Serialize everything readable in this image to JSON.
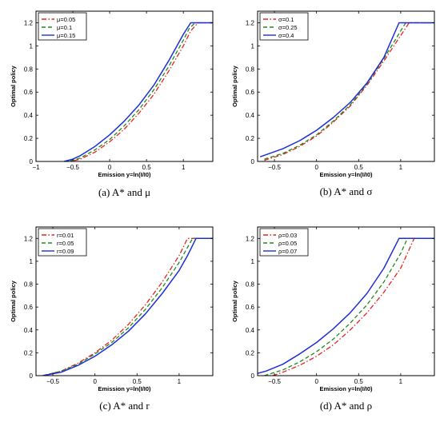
{
  "chart_data": [
    {
      "type": "line",
      "caption": "(a) A* and μ",
      "xlabel": "Emission y=ln(I/I0)",
      "ylabel": "Optimal policy",
      "xlim": [
        -1,
        1.4
      ],
      "ylim": [
        0,
        1.3
      ],
      "xticks": [
        -1,
        -0.5,
        0,
        0.5,
        1
      ],
      "xtick_labels": [
        "−1",
        "−0.5",
        "0",
        "0.5",
        "1"
      ],
      "yticks": [
        0,
        0.2,
        0.4,
        0.6,
        0.8,
        1,
        1.2
      ],
      "ytick_labels": [
        "0",
        "0.2",
        "0.4",
        "0.6",
        "0.8",
        "1",
        "1.2"
      ],
      "legend_position": "top-left",
      "grid": false,
      "series": [
        {
          "name": "μ=0.05",
          "color": "#e8231f",
          "dash": "dashdot",
          "x": [
            -0.62,
            -0.5,
            -0.4,
            -0.2,
            0,
            0.2,
            0.4,
            0.6,
            0.8,
            1.0,
            1.1,
            1.2,
            1.4
          ],
          "y": [
            0,
            0.005,
            0.02,
            0.08,
            0.17,
            0.28,
            0.42,
            0.58,
            0.78,
            1.0,
            1.13,
            1.2,
            1.2
          ]
        },
        {
          "name": "μ=0.1",
          "color": "#1f8a1f",
          "dash": "dashed",
          "x": [
            -0.62,
            -0.5,
            -0.4,
            -0.2,
            0,
            0.2,
            0.4,
            0.6,
            0.8,
            1.0,
            1.08,
            1.16,
            1.4
          ],
          "y": [
            0,
            0.01,
            0.03,
            0.1,
            0.19,
            0.31,
            0.45,
            0.62,
            0.82,
            1.05,
            1.15,
            1.2,
            1.2
          ]
        },
        {
          "name": "μ=0.15",
          "color": "#1f2fd6",
          "dash": "solid",
          "x": [
            -0.62,
            -0.5,
            -0.4,
            -0.2,
            0,
            0.2,
            0.4,
            0.6,
            0.8,
            1.0,
            1.1,
            1.4
          ],
          "y": [
            0,
            0.02,
            0.05,
            0.13,
            0.23,
            0.35,
            0.49,
            0.66,
            0.87,
            1.1,
            1.2,
            1.2
          ]
        }
      ]
    },
    {
      "type": "line",
      "caption": "(b) A* and σ",
      "xlabel": "Emission y=ln(I/I0)",
      "ylabel": "Optimal policy",
      "xlim": [
        -0.7,
        1.4
      ],
      "ylim": [
        0,
        1.3
      ],
      "xticks": [
        -0.5,
        0,
        0.5,
        1
      ],
      "xtick_labels": [
        "−0.5",
        "0",
        "0.5",
        "1"
      ],
      "yticks": [
        0,
        0.2,
        0.4,
        0.6,
        0.8,
        1,
        1.2
      ],
      "ytick_labels": [
        "0",
        "0.2",
        "0.4",
        "0.6",
        "0.8",
        "1",
        "1.2"
      ],
      "legend_position": "top-left",
      "grid": false,
      "series": [
        {
          "name": "σ=0.1",
          "color": "#e8231f",
          "dash": "dashdot",
          "x": [
            -0.62,
            -0.4,
            -0.2,
            0,
            0.2,
            0.4,
            0.6,
            0.8,
            1.0,
            1.1,
            1.4
          ],
          "y": [
            0.01,
            0.06,
            0.13,
            0.22,
            0.34,
            0.48,
            0.66,
            0.87,
            1.09,
            1.2,
            1.2
          ]
        },
        {
          "name": "σ=0.25",
          "color": "#1f8a1f",
          "dash": "dashed",
          "x": [
            -0.62,
            -0.4,
            -0.2,
            0,
            0.2,
            0.4,
            0.6,
            0.8,
            1.0,
            1.06,
            1.4
          ],
          "y": [
            0.02,
            0.07,
            0.14,
            0.23,
            0.35,
            0.49,
            0.67,
            0.89,
            1.13,
            1.2,
            1.2
          ]
        },
        {
          "name": "σ=0.4",
          "color": "#1f2fd6",
          "dash": "solid",
          "x": [
            -0.67,
            -0.4,
            -0.2,
            0,
            0.2,
            0.4,
            0.6,
            0.8,
            0.98,
            1.4
          ],
          "y": [
            0.04,
            0.11,
            0.18,
            0.27,
            0.38,
            0.51,
            0.68,
            0.9,
            1.2,
            1.2
          ]
        }
      ]
    },
    {
      "type": "line",
      "caption": "(c) A* and r",
      "xlabel": "Emission y=ln(I/I0)",
      "ylabel": "Optimal policy",
      "xlim": [
        -0.7,
        1.4
      ],
      "ylim": [
        0,
        1.3
      ],
      "xticks": [
        -0.5,
        0,
        0.5,
        1
      ],
      "xtick_labels": [
        "−0.5",
        "0",
        "0.5",
        "1"
      ],
      "yticks": [
        0,
        0.2,
        0.4,
        0.6,
        0.8,
        1,
        1.2
      ],
      "ytick_labels": [
        "0",
        "0.2",
        "0.4",
        "0.6",
        "0.8",
        "1",
        "1.2"
      ],
      "legend_position": "top-left",
      "grid": false,
      "series": [
        {
          "name": "r=0.01",
          "color": "#e8231f",
          "dash": "dashdot",
          "x": [
            -0.62,
            -0.4,
            -0.2,
            0,
            0.2,
            0.4,
            0.6,
            0.8,
            1.0,
            1.1,
            1.4
          ],
          "y": [
            0,
            0.04,
            0.11,
            0.2,
            0.31,
            0.45,
            0.62,
            0.82,
            1.05,
            1.2,
            1.2
          ]
        },
        {
          "name": "r=0.05",
          "color": "#1f8a1f",
          "dash": "dashed",
          "x": [
            -0.62,
            -0.4,
            -0.2,
            0,
            0.2,
            0.4,
            0.6,
            0.8,
            1.0,
            1.16,
            1.4
          ],
          "y": [
            0,
            0.04,
            0.1,
            0.19,
            0.29,
            0.42,
            0.58,
            0.77,
            0.99,
            1.2,
            1.2
          ]
        },
        {
          "name": "r=0.09",
          "color": "#1f2fd6",
          "dash": "solid",
          "x": [
            -0.62,
            -0.4,
            -0.2,
            0,
            0.2,
            0.4,
            0.6,
            0.8,
            1.0,
            1.1,
            1.2,
            1.4
          ],
          "y": [
            0,
            0.03,
            0.09,
            0.17,
            0.27,
            0.39,
            0.54,
            0.72,
            0.92,
            1.05,
            1.2,
            1.2
          ]
        }
      ]
    },
    {
      "type": "line",
      "caption": "(d) A* and ρ",
      "xlabel": "Emission y=ln(I/I0)",
      "ylabel": "Optimal policy",
      "xlim": [
        -0.7,
        1.4
      ],
      "ylim": [
        0,
        1.3
      ],
      "xticks": [
        -0.5,
        0,
        0.5,
        1
      ],
      "xtick_labels": [
        "−0.5",
        "0",
        "0.5",
        "1"
      ],
      "yticks": [
        0,
        0.2,
        0.4,
        0.6,
        0.8,
        1,
        1.2
      ],
      "ytick_labels": [
        "0",
        "0.2",
        "0.4",
        "0.6",
        "0.8",
        "1",
        "1.2"
      ],
      "legend_position": "top-left",
      "grid": false,
      "series": [
        {
          "name": "ρ=0.03",
          "color": "#e8231f",
          "dash": "dashdot",
          "x": [
            -0.52,
            -0.4,
            -0.2,
            0,
            0.2,
            0.4,
            0.6,
            0.8,
            1.0,
            1.16,
            1.4
          ],
          "y": [
            0,
            0.03,
            0.09,
            0.17,
            0.27,
            0.4,
            0.55,
            0.73,
            0.94,
            1.2,
            1.2
          ]
        },
        {
          "name": "ρ=0.05",
          "color": "#1f8a1f",
          "dash": "dashed",
          "x": [
            -0.62,
            -0.4,
            -0.2,
            0,
            0.2,
            0.4,
            0.6,
            0.8,
            1.0,
            1.08,
            1.4
          ],
          "y": [
            0,
            0.05,
            0.12,
            0.21,
            0.32,
            0.46,
            0.62,
            0.82,
            1.07,
            1.2,
            1.2
          ]
        },
        {
          "name": "ρ=0.07",
          "color": "#1f2fd6",
          "dash": "solid",
          "x": [
            -0.7,
            -0.6,
            -0.4,
            -0.2,
            0,
            0.2,
            0.4,
            0.6,
            0.8,
            0.98,
            1.4
          ],
          "y": [
            0.02,
            0.04,
            0.1,
            0.19,
            0.29,
            0.41,
            0.55,
            0.72,
            0.94,
            1.2,
            1.2
          ]
        }
      ]
    }
  ]
}
